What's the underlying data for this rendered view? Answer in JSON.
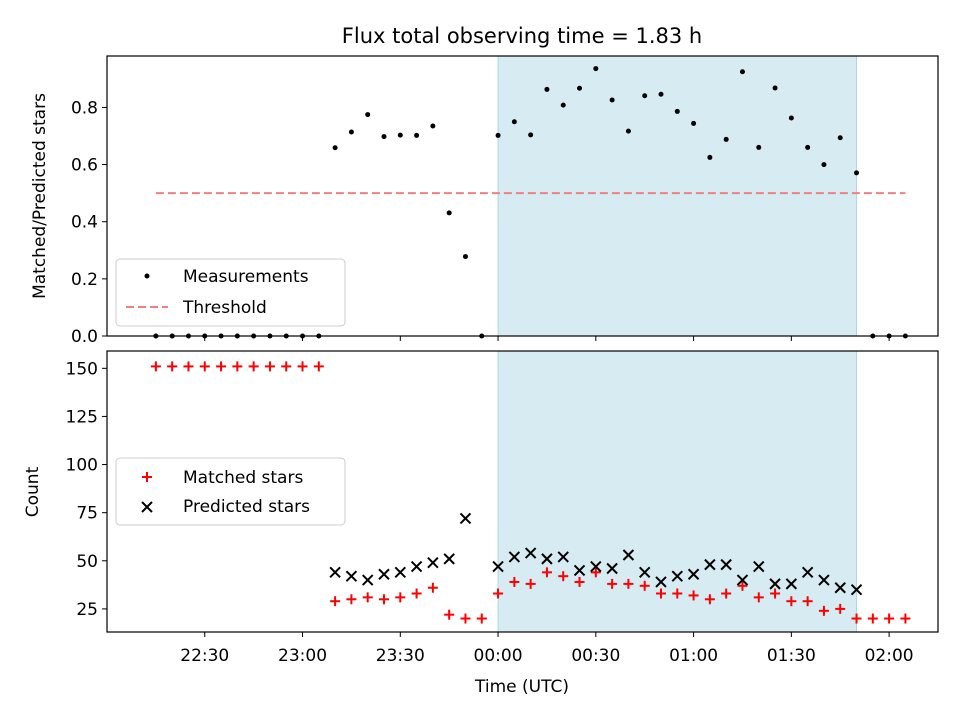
{
  "chart_data": [
    {
      "type": "scatter",
      "title": "Flux total observing time = 1.83 h",
      "ylabel": "Matched/Predicted stars",
      "xlabel": "",
      "x_unit": "UTC time",
      "ylim": [
        0,
        0.98
      ],
      "yticks": [
        "0.0",
        "0.2",
        "0.4",
        "0.6",
        "0.8"
      ],
      "grid": false,
      "legend_position": "lower-left",
      "highlight_span": {
        "start": "00:00",
        "end": "01:50",
        "color": "#add8e6"
      },
      "threshold": {
        "name": "Threshold",
        "y": 0.5,
        "x_start": "22:15",
        "x_end": "02:05",
        "color": "#f08080"
      },
      "series": [
        {
          "name": "Measurements",
          "color": "#000000",
          "marker": "dot",
          "points": [
            [
              "22:15",
              0.0
            ],
            [
              "22:20",
              0.0
            ],
            [
              "22:25",
              0.0
            ],
            [
              "22:30",
              0.0
            ],
            [
              "22:35",
              0.0
            ],
            [
              "22:40",
              0.0
            ],
            [
              "22:45",
              0.0
            ],
            [
              "22:50",
              0.0
            ],
            [
              "22:55",
              0.0
            ],
            [
              "23:00",
              0.0
            ],
            [
              "23:05",
              0.0
            ],
            [
              "23:10",
              0.659
            ],
            [
              "23:15",
              0.714
            ],
            [
              "23:20",
              0.775
            ],
            [
              "23:25",
              0.698
            ],
            [
              "23:30",
              0.703
            ],
            [
              "23:35",
              0.702
            ],
            [
              "23:40",
              0.735
            ],
            [
              "23:45",
              0.431
            ],
            [
              "23:50",
              0.278
            ],
            [
              "23:55",
              0.0
            ],
            [
              "00:00",
              0.702
            ],
            [
              "00:05",
              0.75
            ],
            [
              "00:10",
              0.704
            ],
            [
              "00:15",
              0.863
            ],
            [
              "00:20",
              0.808
            ],
            [
              "00:25",
              0.867
            ],
            [
              "00:30",
              0.936
            ],
            [
              "00:35",
              0.826
            ],
            [
              "00:40",
              0.717
            ],
            [
              "00:45",
              0.841
            ],
            [
              "00:50",
              0.846
            ],
            [
              "00:55",
              0.786
            ],
            [
              "01:00",
              0.744
            ],
            [
              "01:05",
              0.625
            ],
            [
              "01:10",
              0.688
            ],
            [
              "01:15",
              0.925
            ],
            [
              "01:20",
              0.66
            ],
            [
              "01:25",
              0.868
            ],
            [
              "01:30",
              0.763
            ],
            [
              "01:35",
              0.66
            ],
            [
              "01:40",
              0.6
            ],
            [
              "01:45",
              0.694
            ],
            [
              "01:50",
              0.571
            ],
            [
              "01:55",
              0.0
            ],
            [
              "02:00",
              0.0
            ],
            [
              "02:05",
              0.0
            ]
          ]
        }
      ]
    },
    {
      "type": "scatter",
      "title": "",
      "ylabel": "Count",
      "xlabel": "Time (UTC)",
      "ylim": [
        13,
        159
      ],
      "yticks": [
        "25",
        "50",
        "75",
        "100",
        "125",
        "150"
      ],
      "xlim": [
        "22:00",
        "02:15"
      ],
      "xticks": [
        "22:30",
        "23:00",
        "23:30",
        "00:00",
        "00:30",
        "01:00",
        "01:30",
        "02:00"
      ],
      "grid": false,
      "legend_position": "center-left",
      "highlight_span": {
        "start": "00:00",
        "end": "01:50",
        "color": "#add8e6"
      },
      "series": [
        {
          "name": "Matched stars",
          "color": "#ff0000",
          "marker": "plus",
          "points": [
            [
              "22:15",
              151
            ],
            [
              "22:20",
              151
            ],
            [
              "22:25",
              151
            ],
            [
              "22:30",
              151
            ],
            [
              "22:35",
              151
            ],
            [
              "22:40",
              151
            ],
            [
              "22:45",
              151
            ],
            [
              "22:50",
              151
            ],
            [
              "22:55",
              151
            ],
            [
              "23:00",
              151
            ],
            [
              "23:05",
              151
            ],
            [
              "23:10",
              29
            ],
            [
              "23:15",
              30
            ],
            [
              "23:20",
              31
            ],
            [
              "23:25",
              30
            ],
            [
              "23:30",
              31
            ],
            [
              "23:35",
              33
            ],
            [
              "23:40",
              36
            ],
            [
              "23:45",
              22
            ],
            [
              "23:50",
              20
            ],
            [
              "23:55",
              20
            ],
            [
              "00:00",
              33
            ],
            [
              "00:05",
              39
            ],
            [
              "00:10",
              38
            ],
            [
              "00:15",
              44
            ],
            [
              "00:20",
              42
            ],
            [
              "00:25",
              39
            ],
            [
              "00:30",
              44
            ],
            [
              "00:35",
              38
            ],
            [
              "00:40",
              38
            ],
            [
              "00:45",
              37
            ],
            [
              "00:50",
              33
            ],
            [
              "00:55",
              33
            ],
            [
              "01:00",
              32
            ],
            [
              "01:05",
              30
            ],
            [
              "01:10",
              33
            ],
            [
              "01:15",
              37
            ],
            [
              "01:20",
              31
            ],
            [
              "01:25",
              33
            ],
            [
              "01:30",
              29
            ],
            [
              "01:35",
              29
            ],
            [
              "01:40",
              24
            ],
            [
              "01:45",
              25
            ],
            [
              "01:50",
              20
            ],
            [
              "01:55",
              20
            ],
            [
              "02:00",
              20
            ],
            [
              "02:05",
              20
            ]
          ]
        },
        {
          "name": "Predicted stars",
          "color": "#000000",
          "marker": "x",
          "points": [
            [
              "23:10",
              44
            ],
            [
              "23:15",
              42
            ],
            [
              "23:20",
              40
            ],
            [
              "23:25",
              43
            ],
            [
              "23:30",
              44
            ],
            [
              "23:35",
              47
            ],
            [
              "23:40",
              49
            ],
            [
              "23:45",
              51
            ],
            [
              "23:50",
              72
            ],
            [
              "00:00",
              47
            ],
            [
              "00:05",
              52
            ],
            [
              "00:10",
              54
            ],
            [
              "00:15",
              51
            ],
            [
              "00:20",
              52
            ],
            [
              "00:25",
              45
            ],
            [
              "00:30",
              47
            ],
            [
              "00:35",
              46
            ],
            [
              "00:40",
              53
            ],
            [
              "00:45",
              44
            ],
            [
              "00:50",
              39
            ],
            [
              "00:55",
              42
            ],
            [
              "01:00",
              43
            ],
            [
              "01:05",
              48
            ],
            [
              "01:10",
              48
            ],
            [
              "01:15",
              40
            ],
            [
              "01:20",
              47
            ],
            [
              "01:25",
              38
            ],
            [
              "01:30",
              38
            ],
            [
              "01:35",
              44
            ],
            [
              "01:40",
              40
            ],
            [
              "01:45",
              36
            ],
            [
              "01:50",
              35
            ]
          ]
        }
      ]
    }
  ]
}
